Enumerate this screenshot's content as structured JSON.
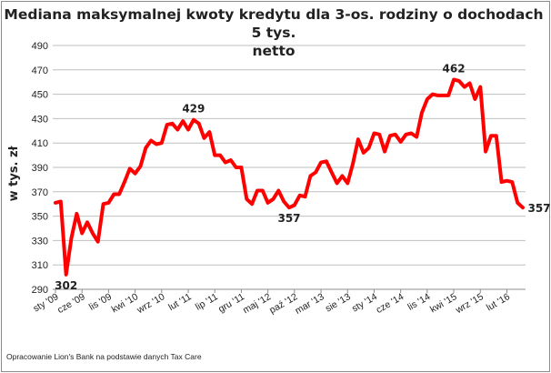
{
  "chart_data": {
    "type": "line",
    "title_line1": "Mediana maksymalnej kwoty kredytu dla 3-os. rodziny o dochodach 5 tys.",
    "title_line2": "netto",
    "ylabel": "w tys. zł",
    "ylim": [
      290,
      490
    ],
    "yticks": [
      290,
      310,
      330,
      350,
      370,
      390,
      410,
      430,
      450,
      470,
      490
    ],
    "grid": "horizontal",
    "line_color": "#ff0000",
    "grid_color": "#bfbfbf",
    "x_tick_labels": [
      "sty '09",
      "cze '09",
      "lis '09",
      "kwi '10",
      "wrz '10",
      "lut '11",
      "lip '11",
      "gru '11",
      "maj '12",
      "paź '12",
      "mar '13",
      "sie '13",
      "sty '14",
      "cze '14",
      "lis '14",
      "kwi '15",
      "wrz '15",
      "lut '16"
    ],
    "series": [
      {
        "values": [
          361,
          362,
          302,
          332,
          352,
          336,
          345,
          336,
          329,
          360,
          361,
          368,
          368,
          378,
          389,
          385,
          391,
          406,
          412,
          409,
          410,
          425,
          426,
          421,
          428,
          421,
          429,
          426,
          414,
          419,
          400,
          400,
          394,
          396,
          390,
          390,
          364,
          360,
          371,
          371,
          361,
          364,
          371,
          362,
          357,
          359,
          367,
          366,
          383,
          386,
          394,
          395,
          386,
          377,
          383,
          377,
          393,
          413,
          402,
          406,
          418,
          417,
          403,
          416,
          417,
          411,
          417,
          418,
          415,
          435,
          446,
          450,
          449,
          449,
          449,
          462,
          461,
          456,
          459,
          446,
          456,
          403,
          416,
          416,
          378,
          379,
          378,
          361,
          357
        ]
      }
    ],
    "annotations": [
      {
        "index": 2,
        "text": "302"
      },
      {
        "index": 26,
        "text": "429"
      },
      {
        "index": 44,
        "text": "357"
      },
      {
        "index": 75,
        "text": "462"
      },
      {
        "index": 88,
        "text": "357"
      }
    ],
    "source": "Opracowanie Lion's Bank na podstawie danych Tax Care"
  }
}
